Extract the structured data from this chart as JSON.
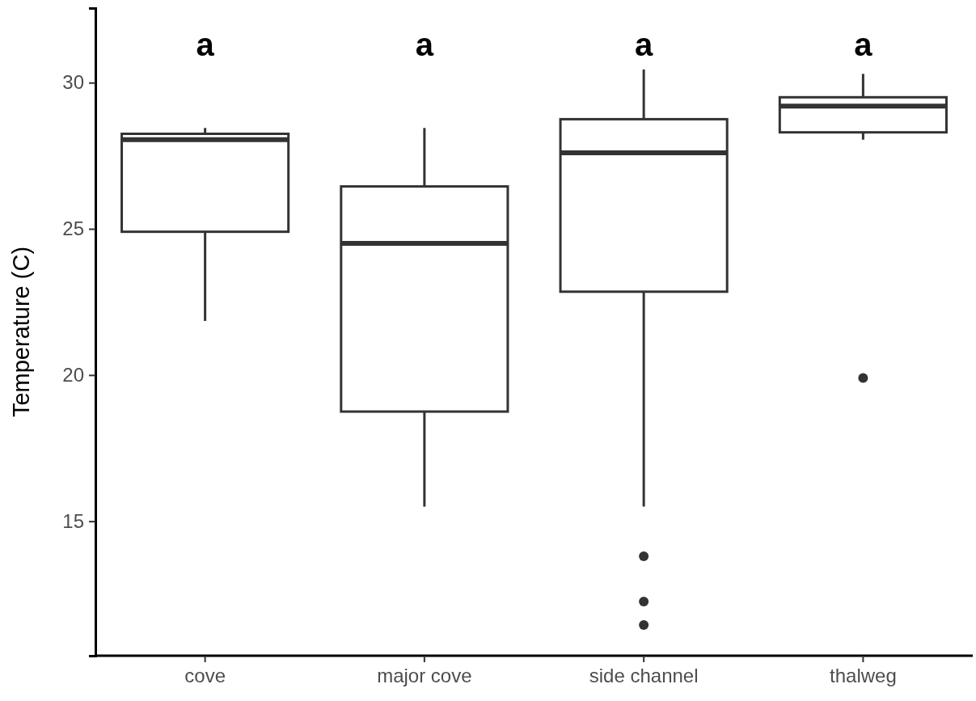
{
  "chart_data": {
    "type": "box",
    "ylabel": "Temperature (C)",
    "categories": [
      "cove",
      "major cove",
      "side channel",
      "thalweg"
    ],
    "boxes": [
      {
        "low": 21.85,
        "q1": 24.9,
        "median": 28.05,
        "q3": 28.25,
        "high": 28.45
      },
      {
        "low": 15.5,
        "q1": 18.75,
        "median": 24.5,
        "q3": 26.45,
        "high": 28.45
      },
      {
        "low": 15.5,
        "q1": 22.85,
        "median": 27.6,
        "q3": 28.75,
        "high": 30.45,
        "outliers": [
          13.8,
          12.25,
          11.45
        ]
      },
      {
        "low": 28.05,
        "q1": 28.3,
        "median": 29.2,
        "q3": 29.5,
        "high": 30.3,
        "outliers": [
          19.9
        ]
      }
    ],
    "ylim": [
      10.4,
      32.55
    ],
    "yticks": [
      15,
      20,
      25,
      30
    ],
    "grid": false,
    "annotations": [
      "a",
      "a",
      "a",
      "a"
    ]
  }
}
